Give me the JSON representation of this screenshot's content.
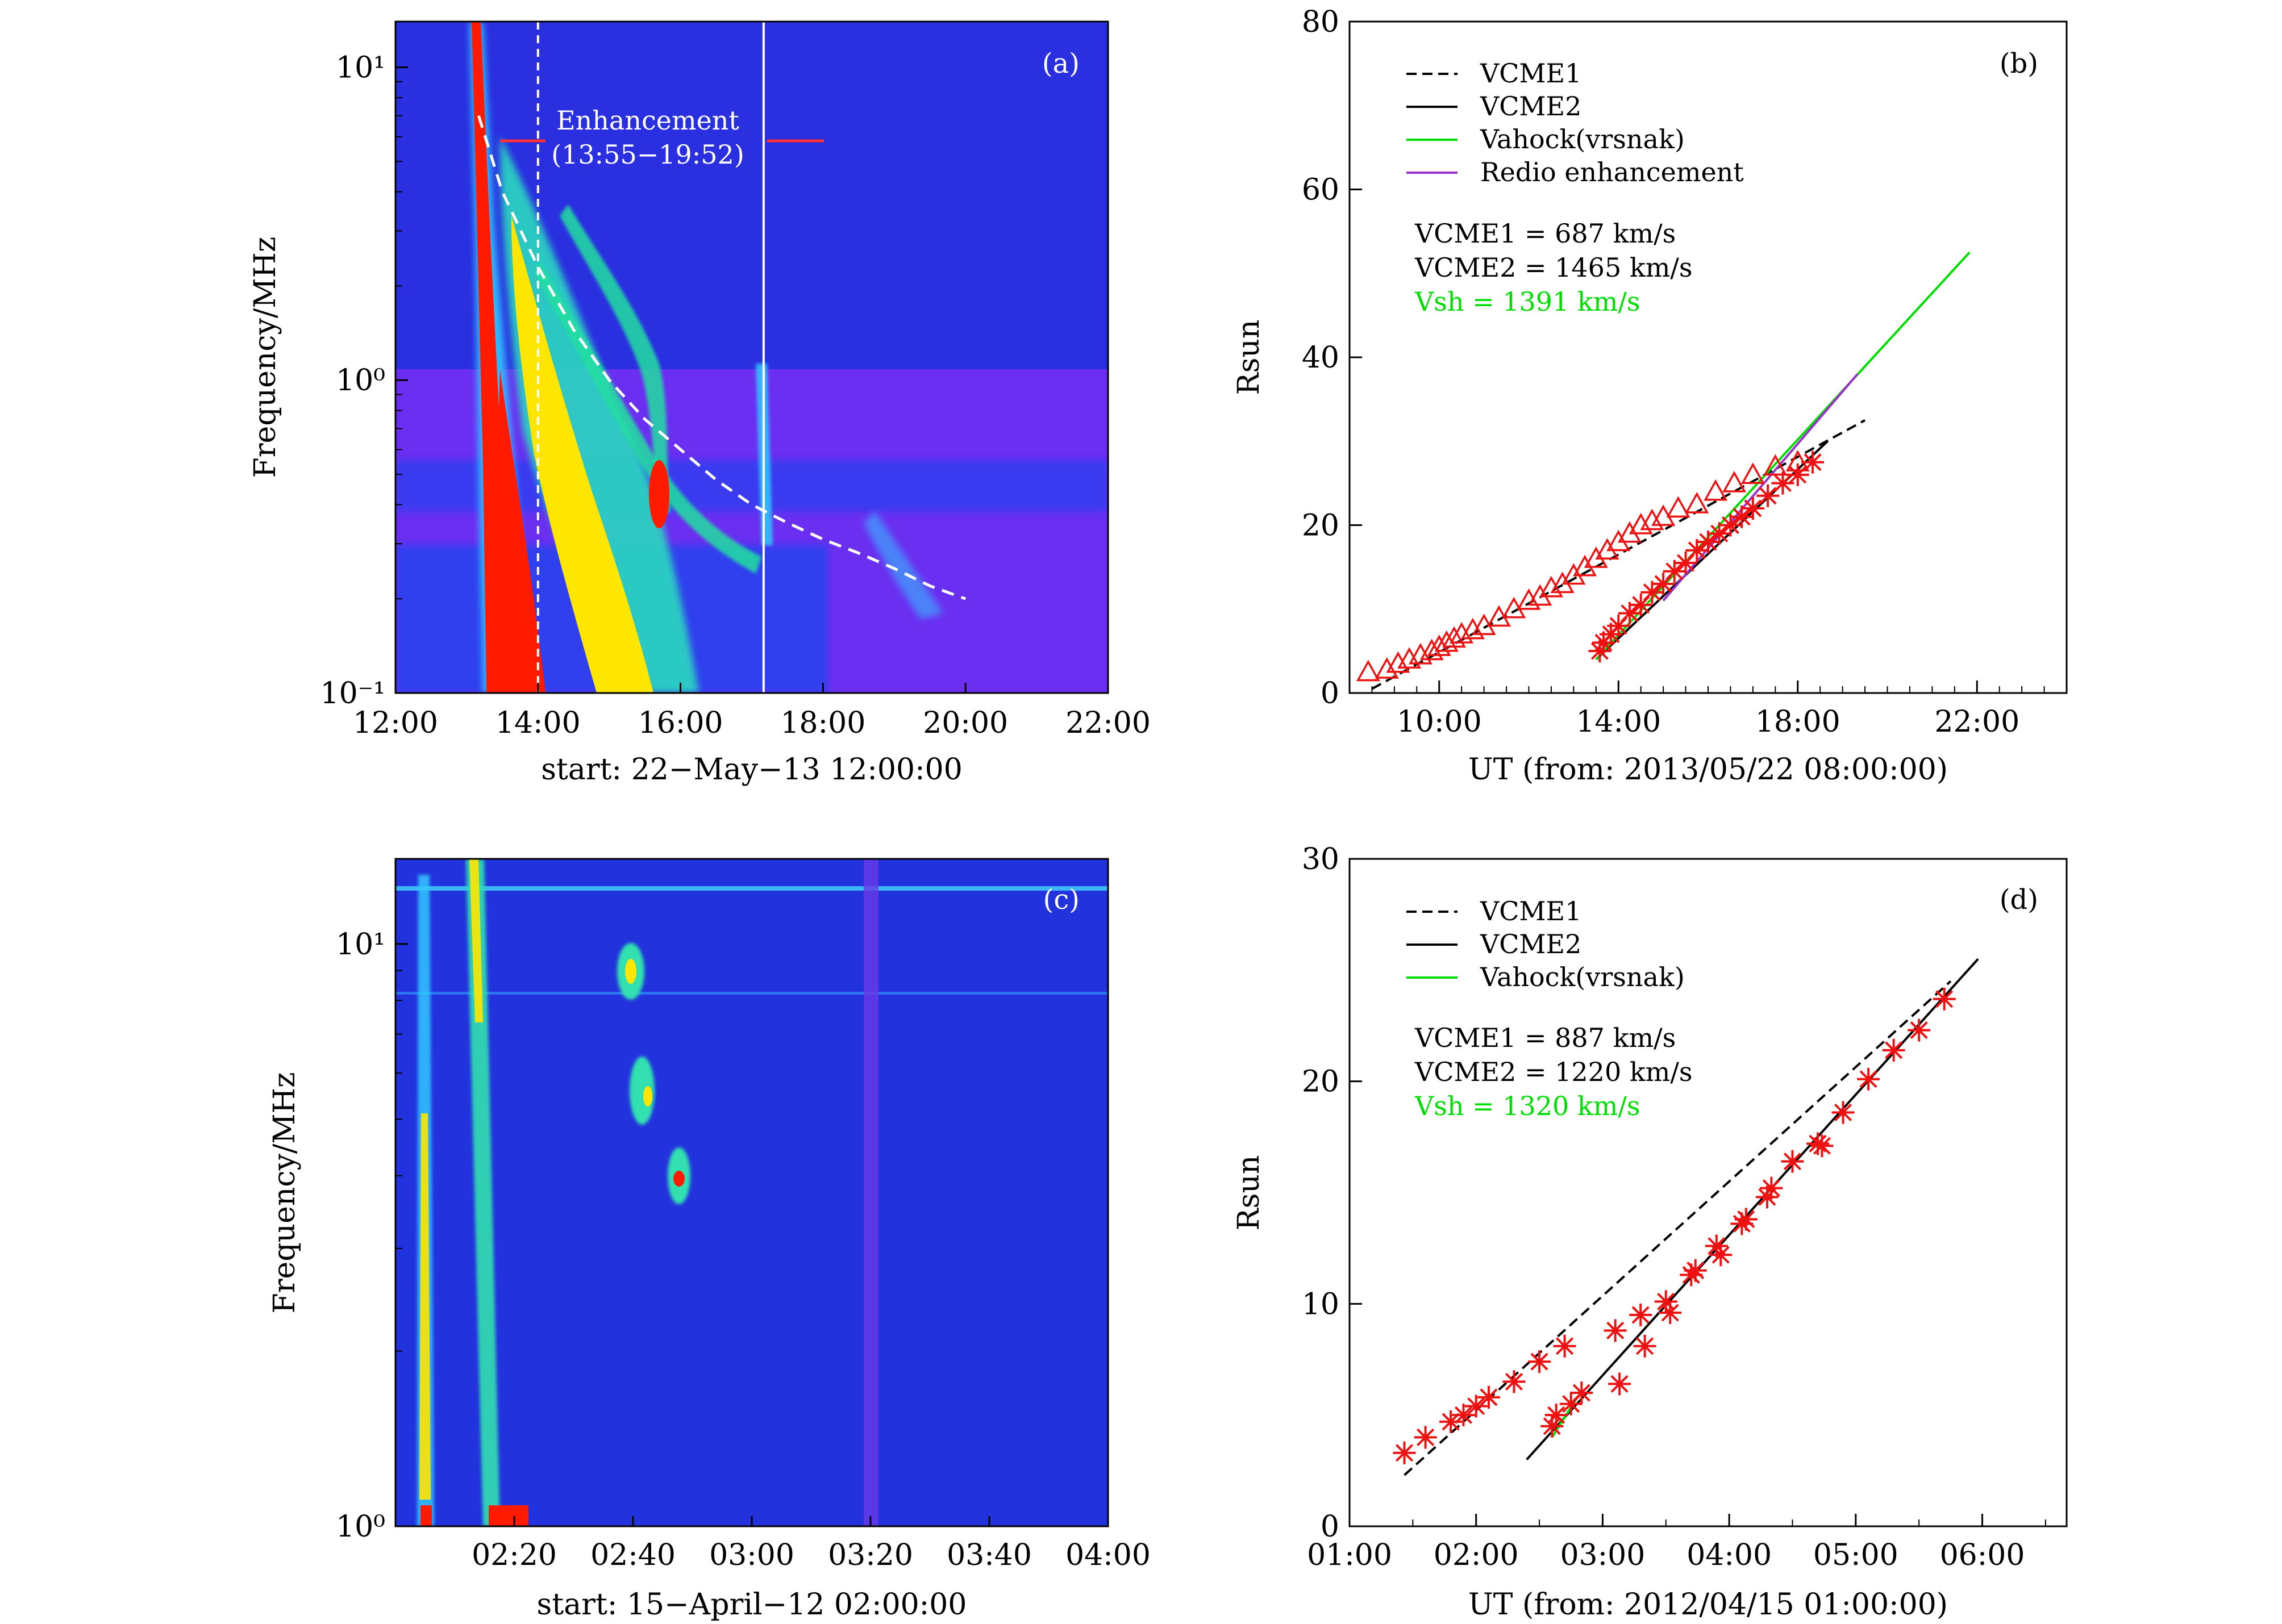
{
  "chart_data": [
    {
      "panel": "(a)",
      "type": "heatmap",
      "ylabel": "Frequency/MHz",
      "yscale": "log",
      "ylim": [
        0.1,
        14
      ],
      "xlabel": "start: 22−May−13 12:00:00",
      "xlim": [
        "12:00",
        "22:00"
      ],
      "xticks": [
        "12:00",
        "14:00",
        "16:00",
        "18:00",
        "20:00",
        "22:00"
      ],
      "yticks": [
        "10⁻¹",
        "10⁰",
        "10¹"
      ],
      "annotation_line1": "Enhancement",
      "annotation_line2": "(13:55−19:52)",
      "marker_dashed_x": "14:00",
      "marker_solid_x": "17:10",
      "fit_curve": {
        "x": [
          "13:10",
          "13:30",
          "14:00",
          "14:30",
          "15:00",
          "15:30",
          "16:00",
          "16:30",
          "17:00",
          "17:30",
          "18:00",
          "18:30",
          "19:00",
          "19:30",
          "20:00"
        ],
        "y": [
          7.0,
          4.0,
          2.3,
          1.45,
          1.0,
          0.75,
          0.6,
          0.48,
          0.4,
          0.35,
          0.31,
          0.28,
          0.25,
          0.22,
          0.2
        ]
      },
      "colors": {
        "background": "#2a2fe0",
        "low_band": "#6a2ff0",
        "hot": "#ff1a00",
        "warm": "#ffe600",
        "mid": "#20e0a0",
        "cool": "#30c8ff",
        "curve": "#ffffff"
      }
    },
    {
      "panel": "(b)",
      "type": "scatter",
      "ylabel": "Rsun",
      "ylim": [
        0,
        80
      ],
      "xlim": [
        "08:00",
        "24:00"
      ],
      "yticks": [
        "0",
        "20",
        "40",
        "60",
        "80"
      ],
      "xticks": [
        "10:00",
        "14:00",
        "18:00",
        "22:00"
      ],
      "xlabel": "UT (from: 2013/05/22 08:00:00)",
      "legend": [
        "VCME1",
        "VCME2",
        "Vahock(vrsnak)",
        "Redio enhancement"
      ],
      "legend_loc": "top-left",
      "text_lines": [
        "VCME1 = 687 km/s",
        "VCME2 = 1465 km/s",
        "Vsh = 1391 km/s"
      ],
      "series": [
        {
          "name": "VCME1",
          "style": "dashed",
          "color": "#000000",
          "x": [
            "08:30",
            "19:30"
          ],
          "y": [
            0.5,
            32.5
          ]
        },
        {
          "name": "VCME2",
          "style": "solid",
          "color": "#000000",
          "x": [
            "13:30",
            "18:40"
          ],
          "y": [
            4,
            30
          ]
        },
        {
          "name": "Vahock(vrsnak)",
          "style": "solid",
          "color": "#00dd00",
          "x": [
            "13:30",
            "21:50"
          ],
          "y": [
            4,
            52.5
          ]
        },
        {
          "name": "Redio enhancement",
          "style": "solid",
          "color": "#9933cc",
          "x": [
            "15:00",
            "19:20"
          ],
          "y": [
            11,
            38
          ]
        }
      ],
      "triangles": {
        "color": "#ee1111",
        "x": [
          "08:25",
          "08:50",
          "09:05",
          "09:20",
          "09:35",
          "09:50",
          "10:00",
          "10:10",
          "10:20",
          "10:30",
          "10:45",
          "11:00",
          "11:20",
          "11:40",
          "12:00",
          "12:15",
          "12:30",
          "12:45",
          "13:00",
          "13:15",
          "13:30",
          "13:45",
          "14:00",
          "14:15",
          "14:30",
          "14:45",
          "15:00",
          "15:20",
          "15:45",
          "16:10",
          "16:35",
          "17:00",
          "17:30",
          "18:00"
        ],
        "y": [
          2.5,
          2.8,
          3.5,
          4.0,
          4.5,
          5.0,
          5.5,
          6.0,
          6.5,
          7.0,
          7.5,
          8.0,
          9.0,
          10.0,
          11.0,
          11.5,
          12.5,
          13.0,
          14.0,
          15.0,
          16.0,
          17.0,
          18.0,
          19.0,
          20.0,
          20.5,
          21.0,
          22.0,
          22.5,
          24.0,
          25.0,
          26.0,
          27.0,
          27.5
        ]
      },
      "stars": {
        "color": "#ee1111",
        "x": [
          "13:35",
          "13:40",
          "13:50",
          "14:00",
          "14:15",
          "14:30",
          "14:45",
          "15:00",
          "15:15",
          "15:30",
          "15:45",
          "16:00",
          "16:15",
          "16:30",
          "16:45",
          "17:00",
          "17:20",
          "17:40",
          "18:00",
          "18:20"
        ],
        "y": [
          5.0,
          6.0,
          7.0,
          8.0,
          9.5,
          10.5,
          12.0,
          13.0,
          14.5,
          15.5,
          17.0,
          18.0,
          19.0,
          20.0,
          21.0,
          22.0,
          23.5,
          25.0,
          26.0,
          27.5
        ]
      }
    },
    {
      "panel": "(c)",
      "type": "heatmap",
      "ylabel": "Frequency/MHz",
      "yscale": "log",
      "ylim": [
        1,
        14
      ],
      "xlabel": "start: 15−April−12 02:00:00",
      "xlim": [
        "02:00",
        "04:00"
      ],
      "xticks": [
        "02:20",
        "02:40",
        "03:00",
        "03:20",
        "03:40",
        "04:00"
      ],
      "yticks": [
        "10⁰",
        "10¹"
      ],
      "colors": {
        "background": "#2233dd",
        "cool": "#30c8ff",
        "mid": "#30e0b0",
        "warm": "#ffe600",
        "hot": "#ff1a00"
      }
    },
    {
      "panel": "(d)",
      "type": "scatter",
      "ylabel": "Rsun",
      "ylim": [
        0,
        30
      ],
      "xlim": [
        "01:00",
        "06:40"
      ],
      "yticks": [
        "0",
        "10",
        "20",
        "30"
      ],
      "xticks": [
        "01:00",
        "02:00",
        "03:00",
        "04:00",
        "05:00",
        "06:00"
      ],
      "xlabel": "UT (from: 2012/04/15 01:00:00)",
      "legend": [
        "VCME1",
        "VCME2",
        "Vahock(vrsnak)"
      ],
      "legend_loc": "top-left",
      "text_lines": [
        "VCME1 = 887 km/s",
        "VCME2 = 1220 km/s",
        "Vsh = 1320 km/s"
      ],
      "series": [
        {
          "name": "VCME1",
          "style": "dashed",
          "color": "#000000",
          "x": [
            "01:26",
            "05:45"
          ],
          "y": [
            2.3,
            24.5
          ]
        },
        {
          "name": "VCME2",
          "style": "solid",
          "color": "#000000",
          "x": [
            "02:24",
            "05:58"
          ],
          "y": [
            3.0,
            25.5
          ]
        },
        {
          "name": "Vahock(vrsnak)",
          "style": "solid",
          "color": "#00dd00",
          "x": [
            "02:36",
            "02:48"
          ],
          "y": [
            4.0,
            5.8
          ]
        }
      ],
      "stars": {
        "color": "#ee1111",
        "x": [
          "01:26",
          "01:36",
          "01:48",
          "01:54",
          "02:00",
          "02:06",
          "02:18",
          "02:30",
          "02:36",
          "02:38",
          "02:42",
          "02:45",
          "02:50",
          "03:06",
          "03:08",
          "03:18",
          "03:20",
          "03:30",
          "03:32",
          "03:42",
          "03:44",
          "03:54",
          "03:56",
          "04:06",
          "04:08",
          "04:18",
          "04:20",
          "04:30",
          "04:42",
          "04:44",
          "04:54",
          "05:06",
          "05:18",
          "05:30",
          "05:42"
        ],
        "y": [
          3.3,
          4.0,
          4.7,
          5.0,
          5.4,
          5.8,
          6.5,
          7.4,
          4.5,
          5.0,
          8.1,
          5.5,
          6.0,
          8.8,
          6.4,
          9.5,
          8.1,
          10.1,
          9.6,
          11.3,
          11.5,
          12.6,
          12.2,
          13.6,
          13.8,
          14.8,
          15.2,
          16.4,
          17.2,
          17.1,
          18.6,
          20.1,
          21.4,
          22.3,
          23.7
        ]
      }
    }
  ]
}
